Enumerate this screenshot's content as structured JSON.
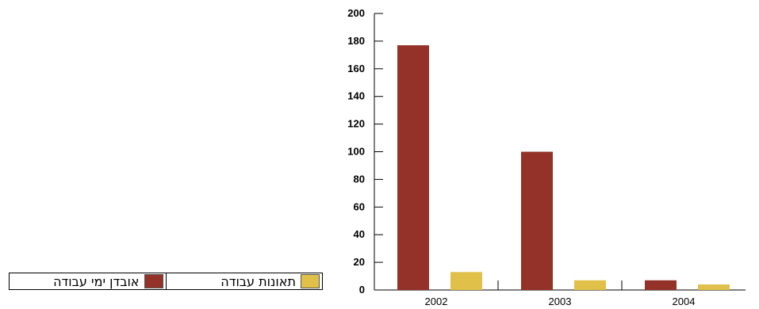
{
  "chart_data": {
    "type": "bar",
    "categories": [
      "2002",
      "2003",
      "2004"
    ],
    "series": [
      {
        "name": "אובדן ימי עבודה",
        "color": "#943128",
        "values": [
          177,
          100,
          7
        ]
      },
      {
        "name": "תאונות עבודה",
        "color": "#e0c048",
        "values": [
          13,
          7,
          4
        ]
      }
    ],
    "ylim": [
      0,
      200
    ],
    "yticks": [
      0,
      20,
      40,
      60,
      80,
      100,
      120,
      140,
      160,
      180,
      200
    ],
    "title": "",
    "xlabel": "",
    "ylabel": "",
    "grid": false,
    "legend": "bottom-left"
  }
}
